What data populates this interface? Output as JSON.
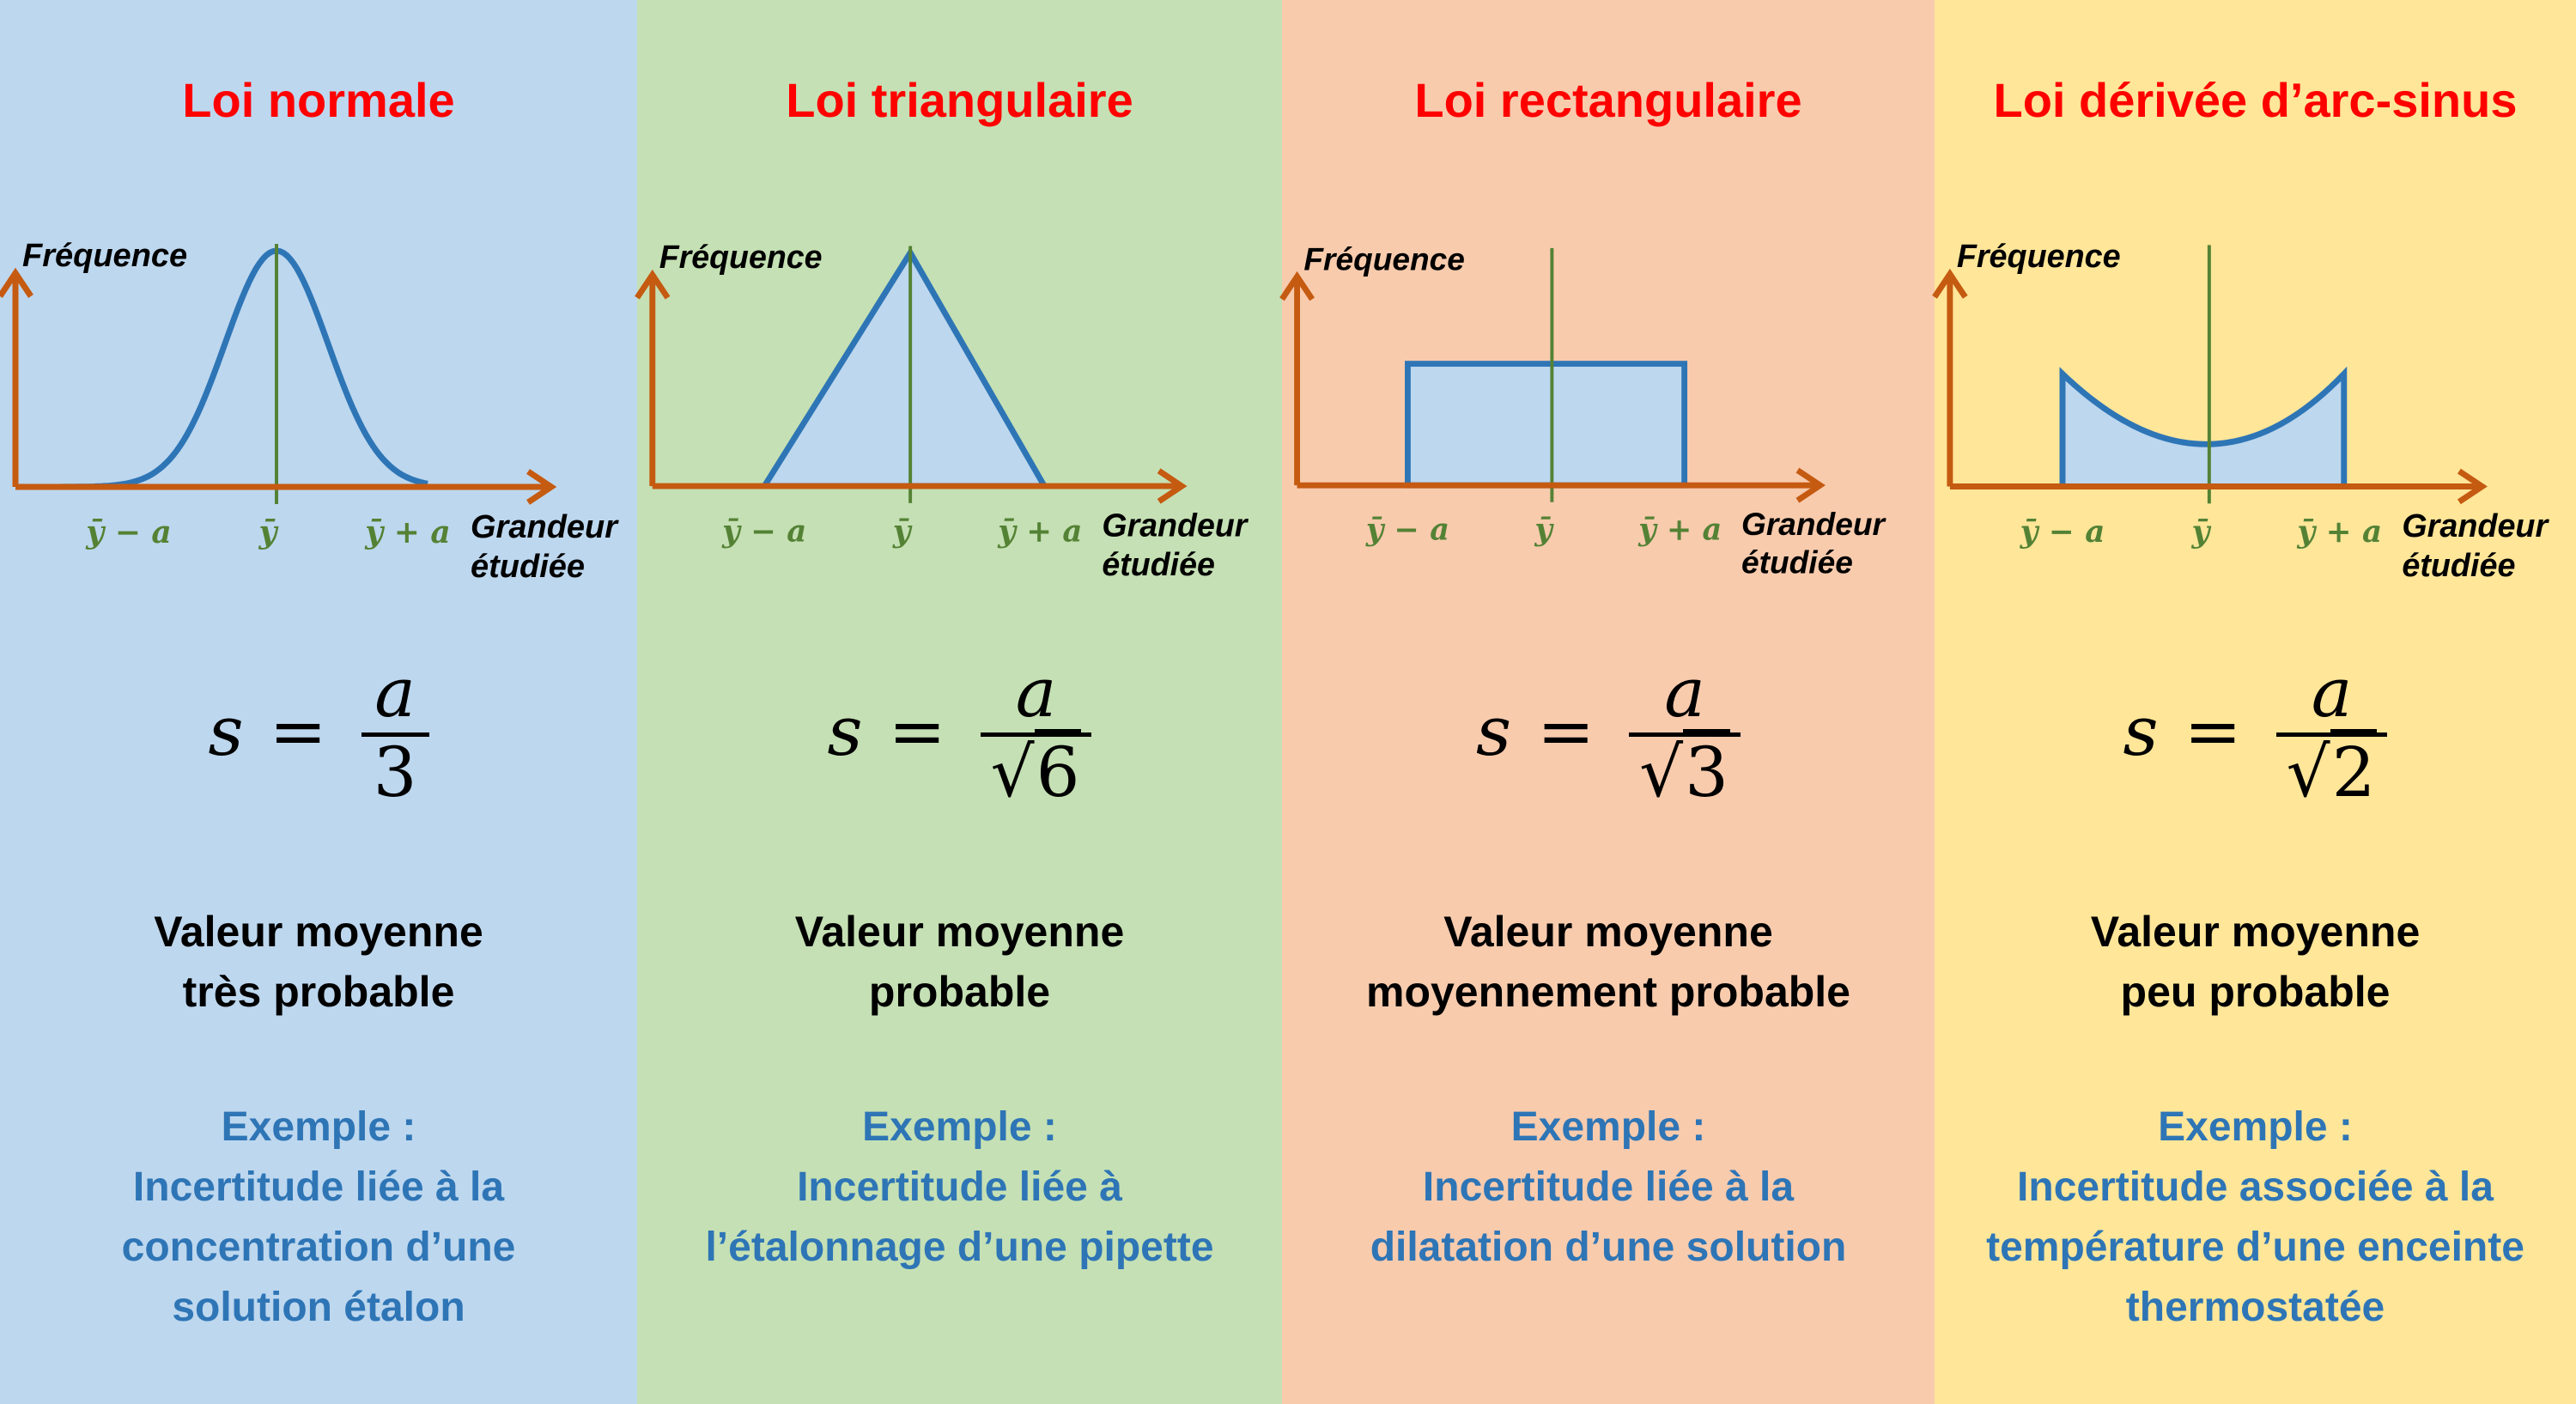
{
  "colors": {
    "panel_normal": "#bdd7ee",
    "panel_triangular": "#c5e0b4",
    "panel_rectangular": "#f8cbad",
    "panel_arcsine": "#ffe699",
    "title": "#ff0000",
    "axis": "#c55a11",
    "curve": "#2e75b6",
    "center_line": "#548235",
    "example_text": "#2e75b6"
  },
  "panels": [
    {
      "title": "Loi normale",
      "shape": "normal",
      "y_axis_label": "Fréquence",
      "x_axis_label_1": "Grandeur",
      "x_axis_label_2": "étudiée",
      "tick_left": "ȳ − a",
      "tick_center": "ȳ",
      "tick_right": "ȳ + a",
      "formula_lhs": "s",
      "formula_eq": "=",
      "formula_num": "a",
      "formula_den": "3",
      "formula_den_sqrt": false,
      "description_1": "Valeur moyenne",
      "description_2": "très probable",
      "example_1": "Exemple :",
      "example_2": "Incertitude liée à la",
      "example_3": "concentration d’une",
      "example_4": "solution étalon"
    },
    {
      "title": "Loi triangulaire",
      "shape": "triangle",
      "y_axis_label": "Fréquence",
      "x_axis_label_1": "Grandeur",
      "x_axis_label_2": "étudiée",
      "tick_left": "ȳ − a",
      "tick_center": "ȳ",
      "tick_right": "ȳ + a",
      "formula_lhs": "s",
      "formula_eq": "=",
      "formula_num": "a",
      "formula_den": "6",
      "formula_den_sqrt": true,
      "description_1": "Valeur moyenne",
      "description_2": "probable",
      "example_1": "Exemple :",
      "example_2": "Incertitude liée à",
      "example_3": "l’étalonnage d’une pipette",
      "example_4": ""
    },
    {
      "title": "Loi rectangulaire",
      "shape": "rectangle",
      "y_axis_label": "Fréquence",
      "x_axis_label_1": "Grandeur",
      "x_axis_label_2": "étudiée",
      "tick_left": "ȳ − a",
      "tick_center": "ȳ",
      "tick_right": "ȳ + a",
      "formula_lhs": "s",
      "formula_eq": "=",
      "formula_num": "a",
      "formula_den": "3",
      "formula_den_sqrt": true,
      "description_1": "Valeur moyenne",
      "description_2": "moyennement probable",
      "example_1": "Exemple :",
      "example_2": "Incertitude liée à la",
      "example_3": "dilatation d’une solution",
      "example_4": ""
    },
    {
      "title": "Loi dérivée d’arc-sinus",
      "shape": "arcsine",
      "y_axis_label": "Fréquence",
      "x_axis_label_1": "Grandeur",
      "x_axis_label_2": "étudiée",
      "tick_left": "ȳ − a",
      "tick_center": "ȳ",
      "tick_right": "ȳ + a",
      "formula_lhs": "s",
      "formula_eq": "=",
      "formula_num": "a",
      "formula_den": "2",
      "formula_den_sqrt": true,
      "description_1": "Valeur moyenne",
      "description_2": "peu probable",
      "example_1": "Exemple :",
      "example_2": "Incertitude associée à la",
      "example_3": "température d’une enceinte",
      "example_4": "thermostatée"
    }
  ]
}
